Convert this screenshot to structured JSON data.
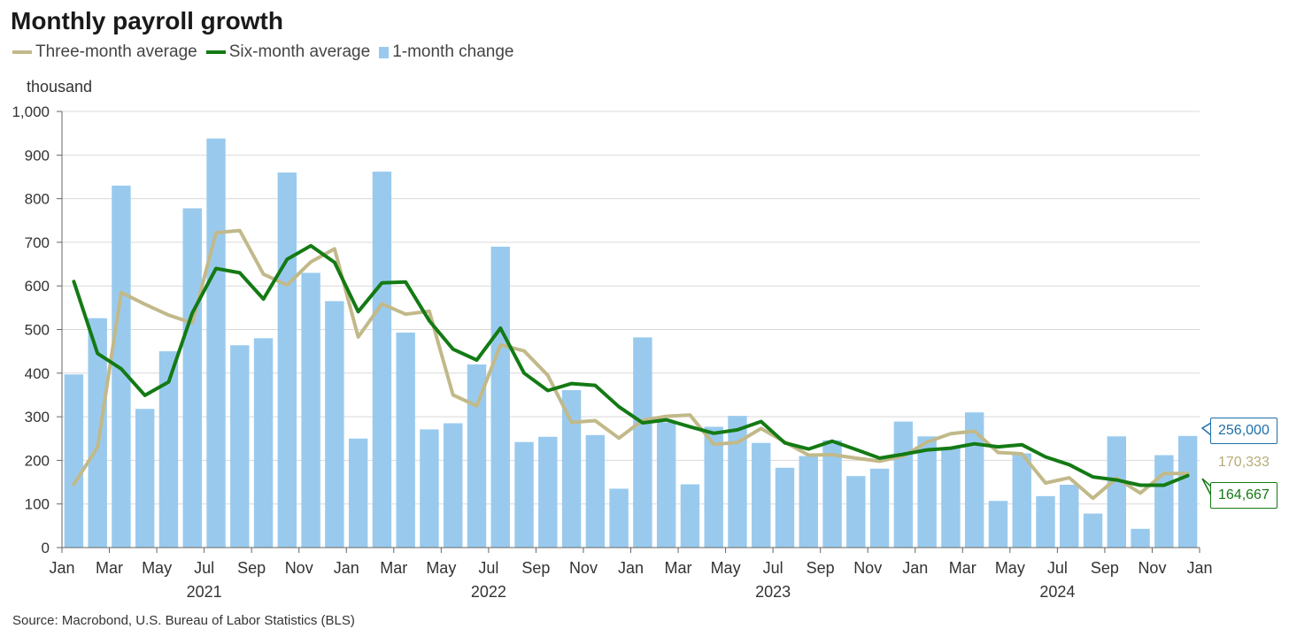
{
  "title": "Monthly payroll growth",
  "unit_label": "thousand",
  "source": "Source: Macrobond, U.S. Bureau of Labor Statistics (BLS)",
  "legend": [
    {
      "label": "Three-month average",
      "color": "#c2b98a",
      "kind": "line"
    },
    {
      "label": "Six-month average",
      "color": "#147a14",
      "kind": "line"
    },
    {
      "label": "1-month change",
      "color": "#99caee",
      "kind": "bar"
    }
  ],
  "end_labels": {
    "bar": {
      "text": "256,000",
      "color": "#1f6fa8"
    },
    "three": {
      "text": "170,333",
      "color": "#b5ac78"
    },
    "six": {
      "text": "164,667",
      "color": "#147a14"
    }
  },
  "chart_data": {
    "type": "bar",
    "title": "Monthly payroll growth",
    "ylabel": "thousand",
    "ylim": [
      0,
      1000
    ],
    "yticks": [
      0,
      100,
      200,
      300,
      400,
      500,
      600,
      700,
      800,
      900,
      1000
    ],
    "ytick_labels": [
      "0",
      "100",
      "200",
      "300",
      "400",
      "500",
      "600",
      "700",
      "800",
      "900",
      "1,000"
    ],
    "xtick_labels": [
      "Jan",
      "Mar",
      "May",
      "Jul",
      "Sep",
      "Nov",
      "Jan",
      "Mar",
      "May",
      "Jul",
      "Sep",
      "Nov",
      "Jan",
      "Mar",
      "May",
      "Jul",
      "Sep",
      "Nov",
      "Jan",
      "Mar",
      "May",
      "Jul",
      "Sep",
      "Nov",
      "Jan"
    ],
    "year_labels": [
      "2021",
      "2022",
      "2023",
      "2024"
    ],
    "grid": true,
    "legend_position": "top-left",
    "series": [
      {
        "name": "1-month change",
        "kind": "bar",
        "color": "#99caee",
        "values": [
          397,
          526,
          830,
          318,
          450,
          778,
          938,
          464,
          480,
          860,
          630,
          565,
          250,
          862,
          493,
          271,
          285,
          420,
          690,
          242,
          254,
          361,
          258,
          135,
          482,
          287,
          145,
          277,
          302,
          240,
          183,
          210,
          246,
          164,
          181,
          289,
          255,
          230,
          310,
          107,
          216,
          118,
          144,
          78,
          255,
          43,
          212,
          256
        ]
      },
      {
        "name": "Three-month average",
        "kind": "line",
        "color": "#c2b98a",
        "values": [
          145,
          230,
          585,
          558,
          533,
          515,
          722,
          727,
          627,
          602,
          655,
          685,
          483,
          559,
          535,
          542,
          350,
          325,
          465,
          451,
          395,
          287,
          291,
          251,
          292,
          301,
          304,
          237,
          241,
          273,
          242,
          212,
          213,
          205,
          198,
          210,
          242,
          261,
          267,
          218,
          215,
          148,
          160,
          113,
          159,
          125,
          170,
          170
        ]
      },
      {
        "name": "Six-month average",
        "kind": "line",
        "color": "#147a14",
        "values": [
          610,
          445,
          410,
          349,
          380,
          538,
          640,
          630,
          570,
          661,
          692,
          654,
          541,
          607,
          609,
          520,
          455,
          430,
          503,
          400,
          360,
          376,
          372,
          323,
          286,
          293,
          277,
          262,
          270,
          289,
          240,
          226,
          244,
          225,
          205,
          214,
          224,
          228,
          238,
          231,
          236,
          208,
          190,
          162,
          155,
          143,
          143,
          165
        ]
      }
    ]
  }
}
